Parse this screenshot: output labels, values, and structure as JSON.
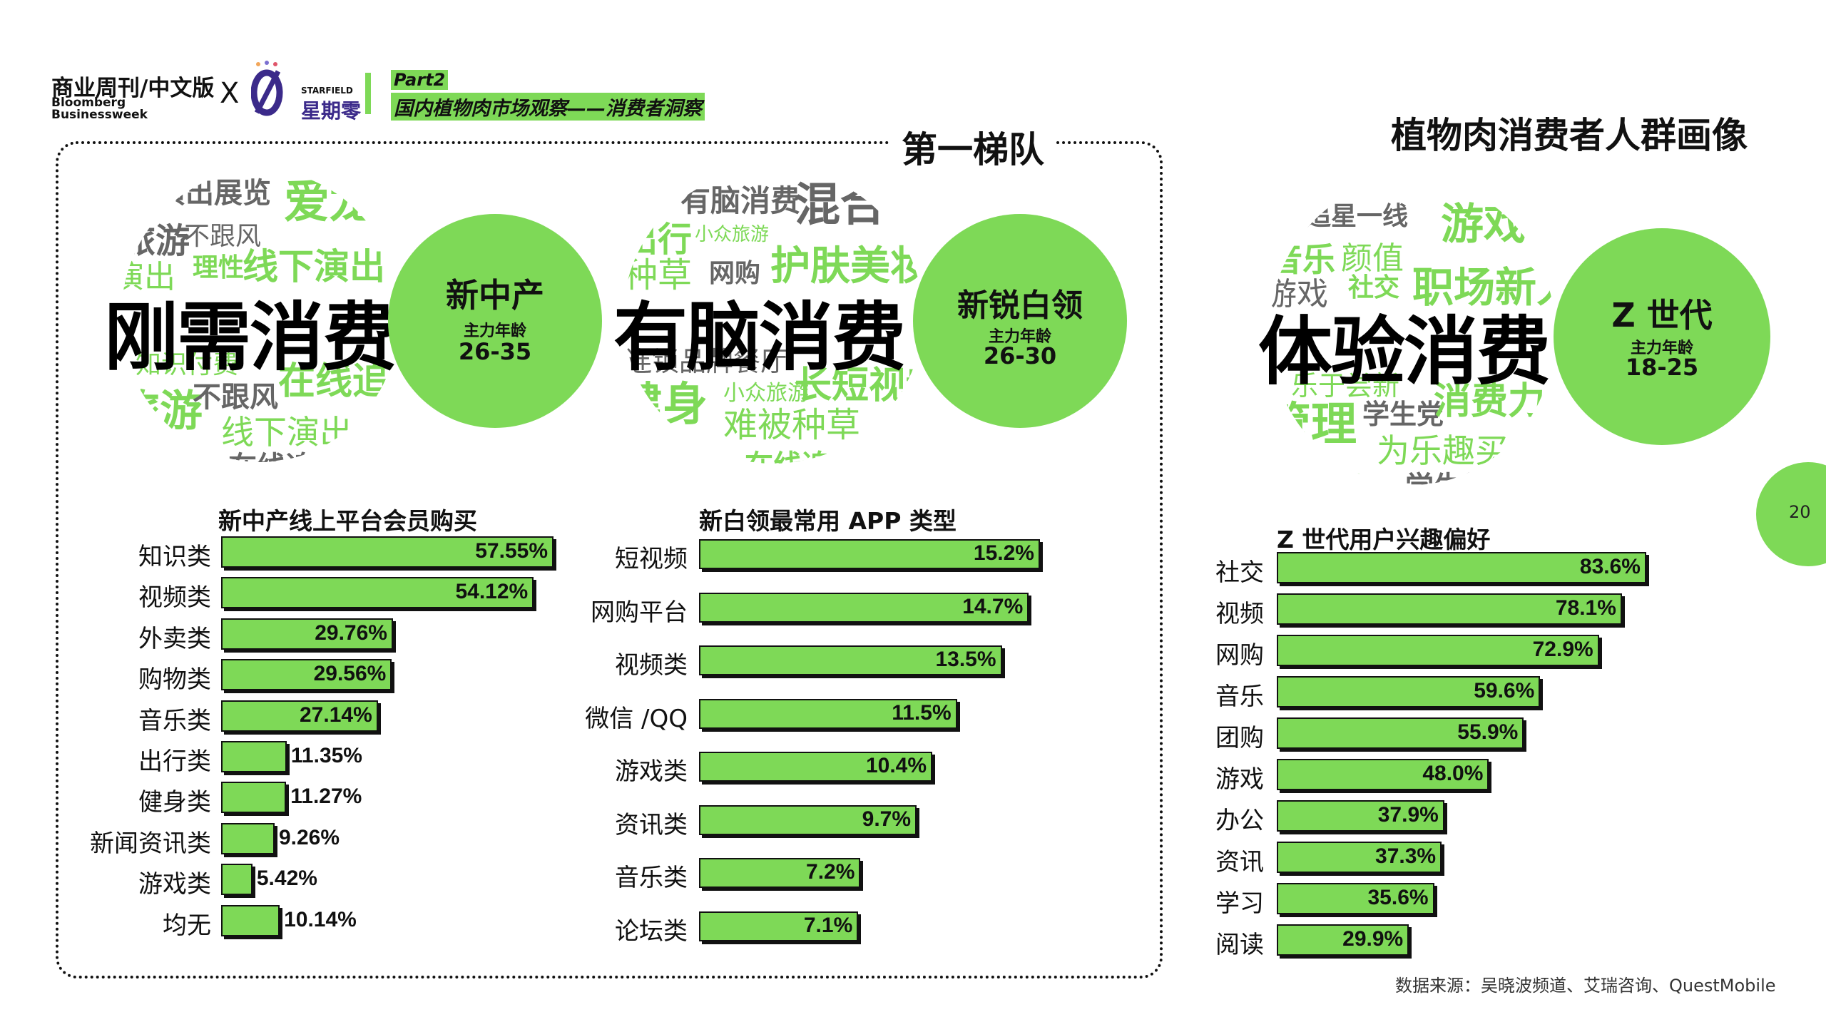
{
  "header": {
    "brand_cn": "商业周刊/中文版",
    "brand_en_1": "Bloomberg",
    "brand_en_2": "Businessweek",
    "cross": "X",
    "partner_name": "星期零",
    "partner_en": "STARFIELD",
    "part_label": "Part2",
    "topic": "国内植物肉市场观察——消费者洞察"
  },
  "tier_label": "第一梯队",
  "right_title": "植物肉消费者人群画像",
  "page_number": "20",
  "source": "数据来源：吴晓波频道、艾瑞咨询、QuestMobile",
  "colors": {
    "accent": "#7ed957",
    "text": "#111111",
    "gray": "#666666"
  },
  "personas": [
    {
      "big_word": "刚需消费",
      "badge_title": "新中产",
      "badge_sub": "主力年龄",
      "badge_age": "26-35",
      "cloud_words": [
        "演出展览",
        "爱龙",
        "旅游",
        "不跟风",
        "理性",
        "线下演出",
        "演出",
        "知识付费",
        "在线追剧",
        "旅游",
        "不跟风",
        "线下演出",
        "在线追剧"
      ]
    },
    {
      "big_word": "有脑消费",
      "badge_title": "新锐白领",
      "badge_sub": "主力年龄",
      "badge_age": "26-30",
      "cloud_words": [
        "有脑消费",
        "混合",
        "出行",
        "小众旅游",
        "种草",
        "网购",
        "护肤美妆",
        "连锁品牌餐厅",
        "健身",
        "小众旅游",
        "长短视频",
        "难被种草",
        "在线追剧"
      ]
    },
    {
      "big_word": "体验消费",
      "badge_title": "Z 世代",
      "badge_sub": "主力年龄",
      "badge_age": "18-25",
      "cloud_words": [
        "追星一线",
        "游戏",
        "音乐",
        "颜值",
        "游戏",
        "社交",
        "职场新人",
        "乐于尝新",
        "管理",
        "学生党",
        "消费力强",
        "为乐趣买",
        "颜值",
        "学生党"
      ]
    }
  ],
  "chart_data": [
    {
      "type": "bar",
      "orientation": "horizontal",
      "title": "新中产线上平台会员购买",
      "categories": [
        "知识类",
        "视频类",
        "外卖类",
        "购物类",
        "音乐类",
        "出行类",
        "健身类",
        "新闻资讯类",
        "游戏类",
        "均无"
      ],
      "values": [
        57.55,
        54.12,
        29.76,
        29.56,
        27.14,
        11.35,
        11.27,
        9.26,
        5.42,
        10.14
      ],
      "value_labels": [
        "57.55%",
        "54.12%",
        "29.76%",
        "29.56%",
        "27.14%",
        "11.35%",
        "11.27%",
        "9.26%",
        "5.42%",
        "10.14%"
      ]
    },
    {
      "type": "bar",
      "orientation": "horizontal",
      "title": "新白领最常用 APP 类型",
      "categories": [
        "短视频",
        "网购平台",
        "视频类",
        "微信 /QQ",
        "游戏类",
        "资讯类",
        "音乐类",
        "论坛类"
      ],
      "values": [
        15.2,
        14.7,
        13.5,
        11.5,
        10.4,
        9.7,
        7.2,
        7.1
      ],
      "value_labels": [
        "15.2%",
        "14.7%",
        "13.5%",
        "11.5%",
        "10.4%",
        "9.7%",
        "7.2%",
        "7.1%"
      ]
    },
    {
      "type": "bar",
      "orientation": "horizontal",
      "title": "Z 世代用户兴趣偏好",
      "categories": [
        "社交",
        "视频",
        "网购",
        "音乐",
        "团购",
        "游戏",
        "办公",
        "资讯",
        "学习",
        "阅读"
      ],
      "values": [
        83.6,
        78.1,
        72.9,
        59.6,
        55.9,
        48.0,
        37.9,
        37.3,
        35.6,
        29.9
      ],
      "value_labels": [
        "83.6%",
        "78.1%",
        "72.9%",
        "59.6%",
        "55.9%",
        "48.0%",
        "37.9%",
        "37.3%",
        "35.6%",
        "29.9%"
      ]
    }
  ]
}
